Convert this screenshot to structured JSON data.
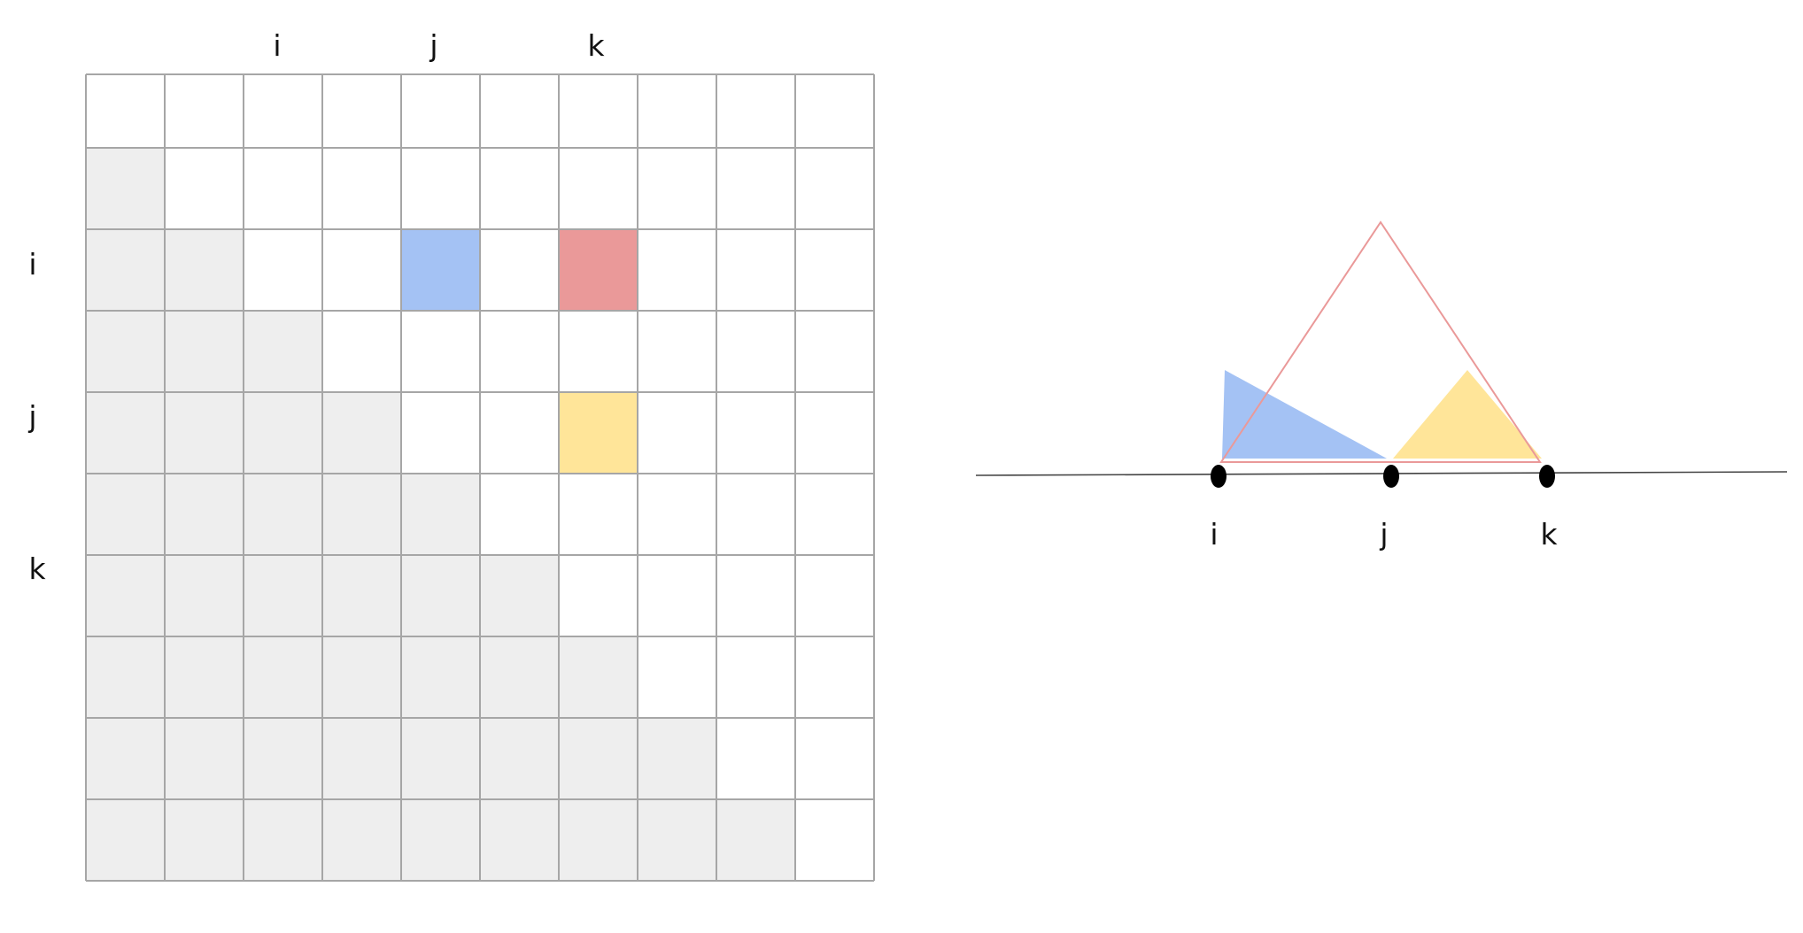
{
  "matrix": {
    "rows": 10,
    "cols": 10,
    "column_labels": [
      {
        "text": "i",
        "col": 2
      },
      {
        "text": "j",
        "col": 4
      },
      {
        "text": "k",
        "col": 6
      }
    ],
    "row_labels": [
      {
        "text": "i",
        "row": 2
      },
      {
        "text": "j",
        "row": 4
      },
      {
        "text": "k",
        "row": 6
      }
    ],
    "shaded_region": "lower-triangle",
    "highlighted_cells": [
      {
        "row": 2,
        "col": 4,
        "color": "#a4c2f4"
      },
      {
        "row": 2,
        "col": 6,
        "color": "#ea9999"
      },
      {
        "row": 4,
        "col": 6,
        "color": "#ffe599"
      }
    ],
    "colors": {
      "shaded": "#eeeeee",
      "empty": "#ffffff",
      "grid_line": "#a6a6a6"
    }
  },
  "tree_diagram": {
    "points": [
      {
        "label": "i"
      },
      {
        "label": "j"
      },
      {
        "label": "k"
      }
    ],
    "outer_triangle_color": "#ea9999",
    "left_subtree_color": "#a4c2f4",
    "right_subtree_color": "#ffe599",
    "line_color": "#444444",
    "point_color": "#000000"
  }
}
